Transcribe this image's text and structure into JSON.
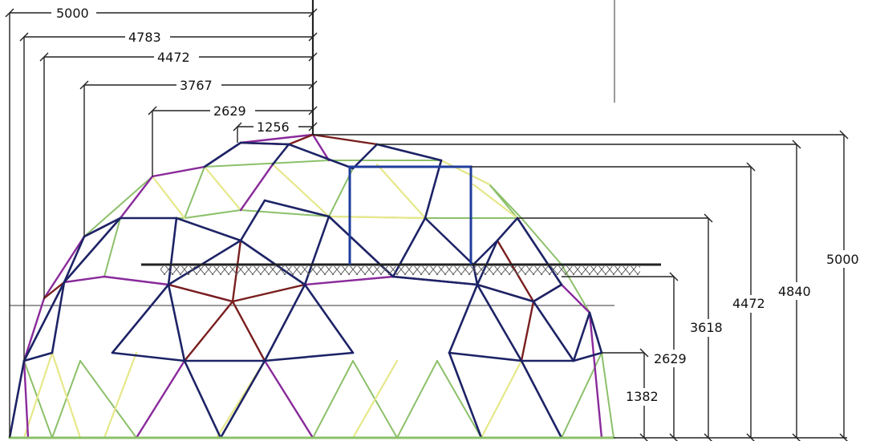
{
  "colors": {
    "navy": "#1d2366",
    "purple": "#8a2a9c",
    "maroon": "#7a1e1e",
    "green": "#8cc06a",
    "yellow": "#e6e88a",
    "dimension": "#222222",
    "highlight": "#1f3d9c"
  },
  "left_dimensions": [
    {
      "id": "w5000",
      "label": "5000"
    },
    {
      "id": "w4783",
      "label": "4783"
    },
    {
      "id": "w4472",
      "label": "4472"
    },
    {
      "id": "w3767",
      "label": "3767"
    },
    {
      "id": "w2629",
      "label": "2629"
    },
    {
      "id": "w1256",
      "label": "1256"
    }
  ],
  "right_dimensions": [
    {
      "id": "h5000",
      "label": "5000"
    },
    {
      "id": "h4840",
      "label": "4840"
    },
    {
      "id": "h4472",
      "label": "4472"
    },
    {
      "id": "h3618",
      "label": "3618"
    },
    {
      "id": "h2629",
      "label": "2629"
    },
    {
      "id": "h1382",
      "label": "1382"
    }
  ]
}
